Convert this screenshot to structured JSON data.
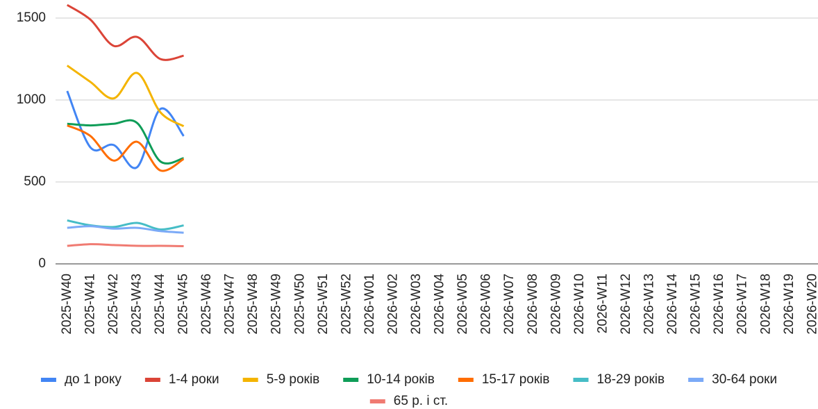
{
  "chart_data": {
    "type": "line",
    "categories": [
      "2025-W40",
      "2025-W41",
      "2025-W42",
      "2025-W43",
      "2025-W44",
      "2025-W45",
      "2025-W46",
      "2025-W47",
      "2025-W48",
      "2025-W49",
      "2025-W50",
      "2025-W51",
      "2025-W52",
      "2026-W01",
      "2026-W02",
      "2026-W03",
      "2026-W04",
      "2026-W05",
      "2026-W06",
      "2026-W07",
      "2026-W08",
      "2026-W09",
      "2026-W10",
      "2026-W11",
      "2026-W12",
      "2026-W13",
      "2026-W14",
      "2026-W15",
      "2026-W16",
      "2026-W17",
      "2026-W18",
      "2026-W19",
      "2026-W20"
    ],
    "series": [
      {
        "name": "до 1 року",
        "color": "#4285f4",
        "values": [
          1055,
          710,
          725,
          590,
          945,
          780,
          null,
          null,
          null,
          null,
          null,
          null,
          null,
          null,
          null,
          null,
          null,
          null,
          null,
          null,
          null,
          null,
          null,
          null,
          null,
          null,
          null,
          null,
          null,
          null,
          null,
          null,
          null
        ]
      },
      {
        "name": "1-4 роки",
        "color": "#db4437",
        "values": [
          1580,
          1490,
          1330,
          1385,
          1250,
          1270,
          null,
          null,
          null,
          null,
          null,
          null,
          null,
          null,
          null,
          null,
          null,
          null,
          null,
          null,
          null,
          null,
          null,
          null,
          null,
          null,
          null,
          null,
          null,
          null,
          null,
          null,
          null
        ]
      },
      {
        "name": "5-9 років",
        "color": "#f4b400",
        "values": [
          1210,
          1110,
          1010,
          1165,
          925,
          840,
          null,
          null,
          null,
          null,
          null,
          null,
          null,
          null,
          null,
          null,
          null,
          null,
          null,
          null,
          null,
          null,
          null,
          null,
          null,
          null,
          null,
          null,
          null,
          null,
          null,
          null,
          null
        ]
      },
      {
        "name": "10-14 років",
        "color": "#0f9d58",
        "values": [
          855,
          845,
          855,
          860,
          625,
          645,
          null,
          null,
          null,
          null,
          null,
          null,
          null,
          null,
          null,
          null,
          null,
          null,
          null,
          null,
          null,
          null,
          null,
          null,
          null,
          null,
          null,
          null,
          null,
          null,
          null,
          null,
          null
        ]
      },
      {
        "name": "15-17 років",
        "color": "#ff6d01",
        "values": [
          845,
          780,
          630,
          745,
          570,
          640,
          null,
          null,
          null,
          null,
          null,
          null,
          null,
          null,
          null,
          null,
          null,
          null,
          null,
          null,
          null,
          null,
          null,
          null,
          null,
          null,
          null,
          null,
          null,
          null,
          null,
          null,
          null
        ]
      },
      {
        "name": "18-29 років",
        "color": "#46bdc6",
        "values": [
          265,
          235,
          225,
          250,
          210,
          235,
          null,
          null,
          null,
          null,
          null,
          null,
          null,
          null,
          null,
          null,
          null,
          null,
          null,
          null,
          null,
          null,
          null,
          null,
          null,
          null,
          null,
          null,
          null,
          null,
          null,
          null,
          null
        ]
      },
      {
        "name": "30-64 роки",
        "color": "#7baaf7",
        "values": [
          220,
          230,
          215,
          220,
          200,
          190,
          null,
          null,
          null,
          null,
          null,
          null,
          null,
          null,
          null,
          null,
          null,
          null,
          null,
          null,
          null,
          null,
          null,
          null,
          null,
          null,
          null,
          null,
          null,
          null,
          null,
          null,
          null
        ]
      },
      {
        "name": "65 р. і ст.",
        "color": "#f07b72",
        "values": [
          110,
          120,
          115,
          110,
          110,
          108,
          null,
          null,
          null,
          null,
          null,
          null,
          null,
          null,
          null,
          null,
          null,
          null,
          null,
          null,
          null,
          null,
          null,
          null,
          null,
          null,
          null,
          null,
          null,
          null,
          null,
          null,
          null
        ]
      }
    ],
    "ylim": [
      0,
      1500
    ],
    "yticks": [
      0,
      500,
      1000,
      1500
    ],
    "grid": true,
    "legend": "bottom"
  }
}
